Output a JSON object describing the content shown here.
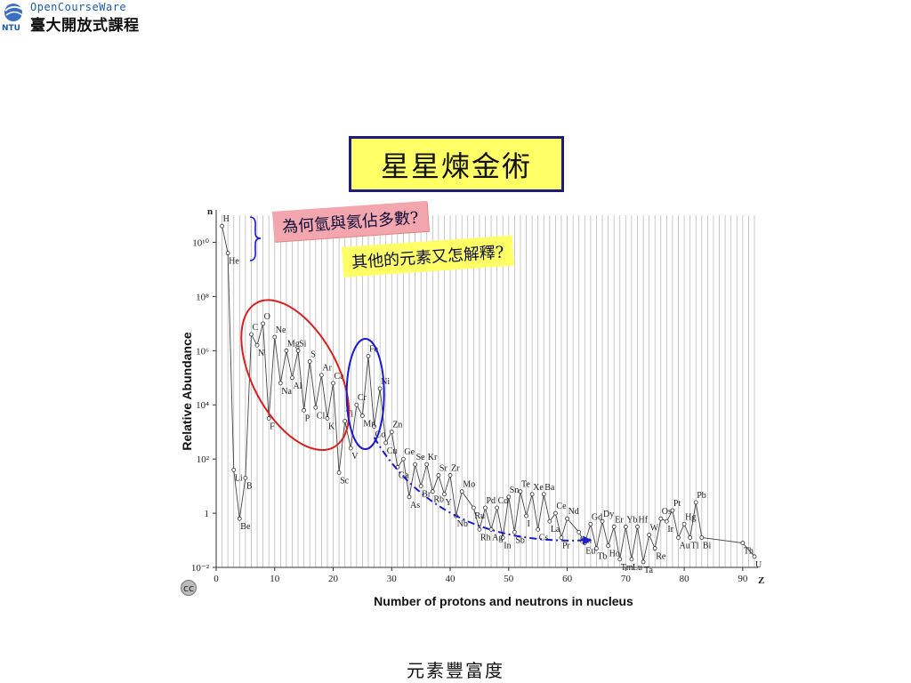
{
  "header": {
    "logo_en": "OpenCourseWare",
    "logo_zh": "臺大開放式課程",
    "logo_mark": "NTU"
  },
  "title": "星星煉金術",
  "callouts": {
    "pink": "為何氫與氦佔多數?",
    "yellow": "其他的元素又怎解釋?"
  },
  "footer": "元素豐富度",
  "license_icon": "cc-icon",
  "colors": {
    "title_bg": "#ffff66",
    "title_border": "#1c1c7c",
    "callout_pink": "#f4a6ae",
    "light_ellipse": "#d91e1e",
    "iron_ellipse": "#1a1acc",
    "arrow": "#1a1acc"
  },
  "chart_data": {
    "type": "line",
    "title": "",
    "xlabel": "Number of protons and neutrons in nucleus",
    "ylabel": "Relative Abundance",
    "x_axis_title": "Z",
    "y_axis_title": "n",
    "y_scale": "log",
    "xlim": [
      0,
      92
    ],
    "ylim_log10": [
      -2,
      11
    ],
    "x_ticks": [
      "0",
      "10",
      "20",
      "30",
      "40",
      "50",
      "60",
      "70",
      "80",
      "90"
    ],
    "y_ticks": [
      "10⁻²",
      "1",
      "10²",
      "10⁴",
      "10⁶",
      "10⁸",
      "10¹⁰"
    ],
    "y_tick_values_log10": [
      -2,
      0,
      2,
      4,
      6,
      8,
      10
    ],
    "grid": "vertical",
    "points": [
      {
        "label": "H",
        "z": 1,
        "log": 10.6
      },
      {
        "label": "He",
        "z": 2,
        "log": 9.6
      },
      {
        "label": "Li",
        "z": 3,
        "log": 1.6
      },
      {
        "label": "Be",
        "z": 4,
        "log": -0.2
      },
      {
        "label": "B",
        "z": 5,
        "log": 1.3
      },
      {
        "label": "C",
        "z": 6,
        "log": 6.6
      },
      {
        "label": "N",
        "z": 7,
        "log": 6.2
      },
      {
        "label": "O",
        "z": 8,
        "log": 7.0
      },
      {
        "label": "F",
        "z": 9,
        "log": 3.5
      },
      {
        "label": "Ne",
        "z": 10,
        "log": 6.5
      },
      {
        "label": "Na",
        "z": 11,
        "log": 4.8
      },
      {
        "label": "Mg",
        "z": 12,
        "log": 6.0
      },
      {
        "label": "Al",
        "z": 13,
        "log": 5.0
      },
      {
        "label": "Si",
        "z": 14,
        "log": 6.0
      },
      {
        "label": "P",
        "z": 15,
        "log": 3.8
      },
      {
        "label": "S",
        "z": 16,
        "log": 5.6
      },
      {
        "label": "Cl",
        "z": 17,
        "log": 3.9
      },
      {
        "label": "Ar",
        "z": 18,
        "log": 5.1
      },
      {
        "label": "K",
        "z": 19,
        "log": 3.5
      },
      {
        "label": "Ca",
        "z": 20,
        "log": 4.8
      },
      {
        "label": "Sc",
        "z": 21,
        "log": 1.5
      },
      {
        "label": "Ti",
        "z": 22,
        "log": 3.4
      },
      {
        "label": "V",
        "z": 23,
        "log": 2.4
      },
      {
        "label": "Cr",
        "z": 24,
        "log": 4.0
      },
      {
        "label": "Mn",
        "z": 25,
        "log": 3.6
      },
      {
        "label": "Fe",
        "z": 26,
        "log": 5.8
      },
      {
        "label": "Co",
        "z": 27,
        "log": 3.2
      },
      {
        "label": "Ni",
        "z": 28,
        "log": 4.6
      },
      {
        "label": "Cu",
        "z": 29,
        "log": 2.6
      },
      {
        "label": "Zn",
        "z": 30,
        "log": 3.0
      },
      {
        "label": "Ga",
        "z": 31,
        "log": 1.7
      },
      {
        "label": "Ge",
        "z": 32,
        "log": 2.0
      },
      {
        "label": "As",
        "z": 33,
        "log": 0.6
      },
      {
        "label": "Se",
        "z": 34,
        "log": 1.8
      },
      {
        "label": "Br",
        "z": 35,
        "log": 1.0
      },
      {
        "label": "Kr",
        "z": 36,
        "log": 1.8
      },
      {
        "label": "Rb",
        "z": 37,
        "log": 0.8
      },
      {
        "label": "Sr",
        "z": 38,
        "log": 1.4
      },
      {
        "label": "Y",
        "z": 39,
        "log": 0.7
      },
      {
        "label": "Zr",
        "z": 40,
        "log": 1.4
      },
      {
        "label": "Nb",
        "z": 41,
        "log": -0.1
      },
      {
        "label": "Mo",
        "z": 42,
        "log": 0.8
      },
      {
        "label": "Ru",
        "z": 44,
        "log": 0.2
      },
      {
        "label": "Rh",
        "z": 45,
        "log": -0.6
      },
      {
        "label": "Pd",
        "z": 46,
        "log": 0.2
      },
      {
        "label": "Ag",
        "z": 47,
        "log": -0.6
      },
      {
        "label": "Cd",
        "z": 48,
        "log": 0.2
      },
      {
        "label": "In",
        "z": 49,
        "log": -0.9
      },
      {
        "label": "Sn",
        "z": 50,
        "log": 0.6
      },
      {
        "label": "Sb",
        "z": 51,
        "log": -0.7
      },
      {
        "label": "Te",
        "z": 52,
        "log": 0.8
      },
      {
        "label": "I",
        "z": 53,
        "log": -0.1
      },
      {
        "label": "Xe",
        "z": 54,
        "log": 0.7
      },
      {
        "label": "Cs",
        "z": 55,
        "log": -0.6
      },
      {
        "label": "Ba",
        "z": 56,
        "log": 0.7
      },
      {
        "label": "La",
        "z": 57,
        "log": -0.3
      },
      {
        "label": "Ce",
        "z": 58,
        "log": 0.0
      },
      {
        "label": "Pr",
        "z": 59,
        "log": -0.9
      },
      {
        "label": "Nd",
        "z": 60,
        "log": -0.2
      },
      {
        "label": "Sm",
        "z": 62,
        "log": -0.7
      },
      {
        "label": "Eu",
        "z": 63,
        "log": -1.1
      },
      {
        "label": "Gd",
        "z": 64,
        "log": -0.4
      },
      {
        "label": "Tb",
        "z": 65,
        "log": -1.3
      },
      {
        "label": "Dy",
        "z": 66,
        "log": -0.3
      },
      {
        "label": "Ho",
        "z": 67,
        "log": -1.2
      },
      {
        "label": "Er",
        "z": 68,
        "log": -0.5
      },
      {
        "label": "Tm",
        "z": 69,
        "log": -1.7
      },
      {
        "label": "Yb",
        "z": 70,
        "log": -0.5
      },
      {
        "label": "Lu",
        "z": 71,
        "log": -1.7
      },
      {
        "label": "Hf",
        "z": 72,
        "log": -0.5
      },
      {
        "label": "Ta",
        "z": 73,
        "log": -1.8
      },
      {
        "label": "W",
        "z": 74,
        "log": -0.8
      },
      {
        "label": "Re",
        "z": 75,
        "log": -1.3
      },
      {
        "label": "Os",
        "z": 76,
        "log": -0.2
      },
      {
        "label": "Ir",
        "z": 77,
        "log": -0.3
      },
      {
        "label": "Pt",
        "z": 78,
        "log": 0.1
      },
      {
        "label": "Au",
        "z": 79,
        "log": -0.9
      },
      {
        "label": "Hg",
        "z": 80,
        "log": -0.4
      },
      {
        "label": "Tl",
        "z": 81,
        "log": -0.9
      },
      {
        "label": "Pb",
        "z": 82,
        "log": 0.4
      },
      {
        "label": "Bi",
        "z": 83,
        "log": -0.9
      },
      {
        "label": "Th",
        "z": 90,
        "log": -1.1
      },
      {
        "label": "U",
        "z": 92,
        "log": -1.6
      }
    ]
  }
}
